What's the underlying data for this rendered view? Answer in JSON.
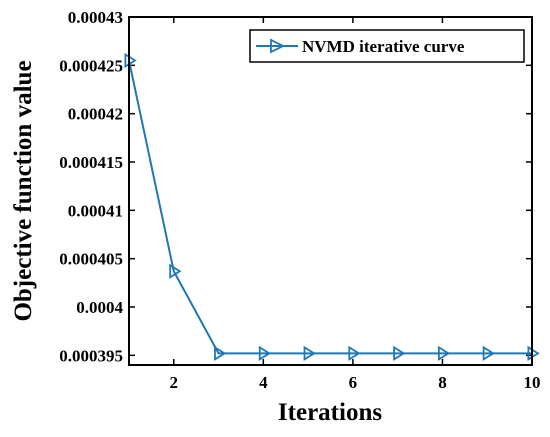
{
  "chart_data": {
    "type": "line",
    "title": "",
    "xlabel": "Iterations",
    "ylabel": "Objective function value",
    "xlim": [
      1,
      10
    ],
    "ylim": [
      0.000394,
      0.00043
    ],
    "x_ticks": [
      2,
      4,
      6,
      8,
      10
    ],
    "x_tick_labels": [
      "2",
      "4",
      "6",
      "8",
      "10"
    ],
    "y_ticks": [
      0.000395,
      0.0004,
      0.000405,
      0.00041,
      0.000415,
      0.00042,
      0.000425,
      0.00043
    ],
    "y_tick_labels": [
      "0.000395",
      "0.0004",
      "0.000405",
      "0.00041",
      "0.000415",
      "0.00042",
      "0.000425",
      "0.00043"
    ],
    "grid": false,
    "legend_position": "top-right",
    "series": [
      {
        "name": "NVMD iterative curve",
        "color": "#1f77b4",
        "marker": "triangle-right",
        "x": [
          1,
          2,
          3,
          4,
          5,
          6,
          7,
          8,
          9,
          10
        ],
        "y": [
          0.0004255,
          0.0004037,
          0.0003952,
          0.0003952,
          0.0003952,
          0.0003952,
          0.0003952,
          0.0003952,
          0.0003952,
          0.0003952
        ]
      }
    ]
  }
}
